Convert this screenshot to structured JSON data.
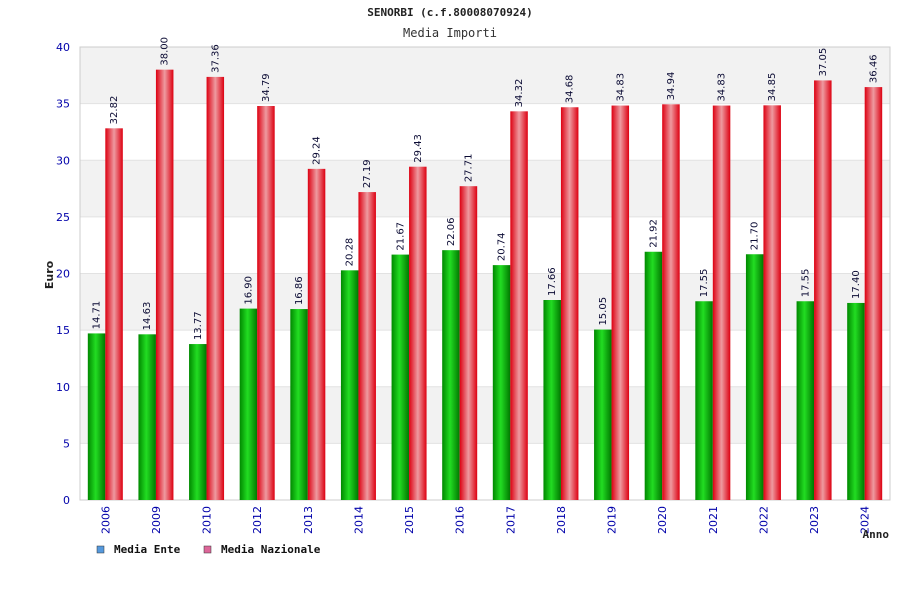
{
  "header": {
    "title": "SENORBI (c.f.80008070924)",
    "subtitle": "Media Importi"
  },
  "colors": {
    "series_ente": "#00bb00",
    "series_nazionale": "#ee1122",
    "legend_ente": "#5599dd",
    "legend_nazionale": "#dd6699",
    "axis_text": "#0000aa",
    "band": "#f2f2f2"
  },
  "chart_data": {
    "type": "bar",
    "title": "SENORBI (c.f.80008070924)",
    "subtitle": "Media Importi",
    "xlabel": "Anno",
    "ylabel": "Euro",
    "ylim": [
      0,
      40
    ],
    "yticks": [
      0,
      5,
      10,
      15,
      20,
      25,
      30,
      35,
      40
    ],
    "grid": true,
    "legend_position": "bottom-left",
    "categories": [
      "2006",
      "2009",
      "2010",
      "2012",
      "2013",
      "2014",
      "2015",
      "2016",
      "2017",
      "2018",
      "2019",
      "2020",
      "2021",
      "2022",
      "2023",
      "2024"
    ],
    "series": [
      {
        "name": "Media Ente",
        "values": [
          14.71,
          14.63,
          13.77,
          16.9,
          16.86,
          20.28,
          21.67,
          22.06,
          20.74,
          17.66,
          15.05,
          21.92,
          17.55,
          21.7,
          17.55,
          17.4
        ],
        "labels": [
          "14.71",
          "14.63",
          "13.77",
          "16.90",
          "16.86",
          "20.28",
          "21.67",
          "22.06",
          "20.74",
          "17.66",
          "15.05",
          "21.92",
          "17.55",
          "21.70",
          "17.55",
          "17.40"
        ]
      },
      {
        "name": "Media Nazionale",
        "values": [
          32.82,
          38.0,
          37.36,
          34.79,
          29.24,
          27.19,
          29.43,
          27.71,
          34.32,
          34.68,
          34.83,
          34.94,
          34.83,
          34.85,
          37.05,
          36.46
        ],
        "labels": [
          "32.82",
          "38.00",
          "37.36",
          "34.79",
          "29.24",
          "27.19",
          "29.43",
          "27.71",
          "34.32",
          "34.68",
          "34.83",
          "34.94",
          "34.83",
          "34.85",
          "37.05",
          "36.46"
        ]
      }
    ]
  }
}
